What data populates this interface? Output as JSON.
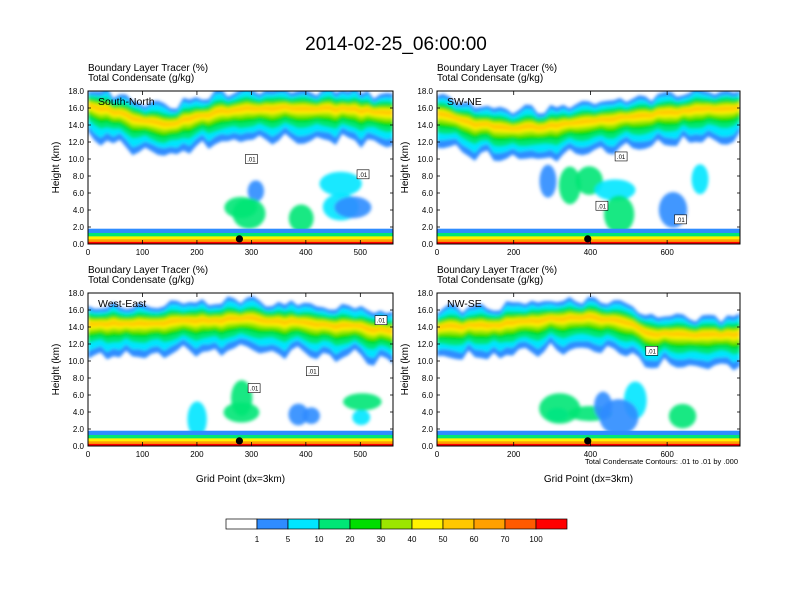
{
  "figure": {
    "title": "2014-02-25_06:00:00",
    "footnote": "Total Condensate Contours: .01 to .01 by .000"
  },
  "colorbar": {
    "colors": [
      "#ffffff",
      "#2f8cff",
      "#00e5ff",
      "#00e676",
      "#00dd00",
      "#9ce600",
      "#fff200",
      "#ffc800",
      "#ffa000",
      "#ff5a00",
      "#ff0000"
    ],
    "labels": [
      "1",
      "5",
      "10",
      "20",
      "30",
      "40",
      "50",
      "60",
      "70",
      "100"
    ]
  },
  "chart_data": [
    {
      "type": "heatmap",
      "panel_label": "South-North",
      "subtitle_1": "Boundary Layer Tracer   (%)",
      "subtitle_2": "Total Condensate   (g/kg)",
      "ylabel": "Height (km)",
      "xlabel": "",
      "xlim": [
        0,
        560
      ],
      "ylim": [
        0,
        18
      ],
      "xticks": [
        0,
        100,
        200,
        300,
        400,
        500
      ],
      "yticks": [
        "0.0",
        "2.0",
        "4.0",
        "6.0",
        "8.0",
        "10.0",
        "12.0",
        "14.0",
        "16.0",
        "18.0"
      ],
      "contour_labels": [
        {
          "text": ".01",
          "x": 300,
          "y": 10
        },
        {
          "text": ".01",
          "x": 505,
          "y": 8.2
        }
      ],
      "marker_x": 278,
      "core": [
        [
          0,
          16.5
        ],
        [
          40,
          15.8
        ],
        [
          90,
          14.8
        ],
        [
          140,
          14
        ],
        [
          200,
          15
        ],
        [
          260,
          15.8
        ],
        [
          320,
          16
        ],
        [
          380,
          16.1
        ],
        [
          440,
          16
        ],
        [
          500,
          15.8
        ],
        [
          560,
          15.5
        ]
      ]
    },
    {
      "type": "heatmap",
      "panel_label": "SW-NE",
      "subtitle_1": "Boundary Layer Tracer   (%)",
      "subtitle_2": "Total Condensate   (g/kg)",
      "ylabel": "Height (km)",
      "xlabel": "",
      "xlim": [
        0,
        790
      ],
      "ylim": [
        0,
        18
      ],
      "xticks": [
        0,
        200,
        400,
        600
      ],
      "yticks": [
        "0.0",
        "2.0",
        "4.0",
        "6.0",
        "8.0",
        "10.0",
        "12.0",
        "14.0",
        "16.0",
        "18.0"
      ],
      "contour_labels": [
        {
          "text": ".01",
          "x": 480,
          "y": 10.3
        },
        {
          "text": ".01",
          "x": 430,
          "y": 4.5
        },
        {
          "text": ".01",
          "x": 635,
          "y": 2.9
        }
      ],
      "marker_x": 393,
      "core": [
        [
          0,
          15.5
        ],
        [
          100,
          14.2
        ],
        [
          200,
          13.6
        ],
        [
          300,
          14
        ],
        [
          400,
          14.5
        ],
        [
          500,
          15
        ],
        [
          600,
          15.5
        ],
        [
          700,
          16
        ],
        [
          790,
          16.2
        ]
      ]
    },
    {
      "type": "heatmap",
      "panel_label": "West-East",
      "subtitle_1": "Boundary Layer Tracer   (%)",
      "subtitle_2": "Total Condensate   (g/kg)",
      "ylabel": "Height (km)",
      "xlabel": "Grid Point (dx=3km)",
      "xlim": [
        0,
        560
      ],
      "ylim": [
        0,
        18
      ],
      "xticks": [
        0,
        100,
        200,
        300,
        400,
        500
      ],
      "yticks": [
        "0.0",
        "2.0",
        "4.0",
        "6.0",
        "8.0",
        "10.0",
        "12.0",
        "14.0",
        "16.0",
        "18.0"
      ],
      "contour_labels": [
        {
          "text": ".01",
          "x": 538,
          "y": 14.8
        },
        {
          "text": ".01",
          "x": 412,
          "y": 8.8
        },
        {
          "text": ".01",
          "x": 305,
          "y": 6.8
        }
      ],
      "marker_x": 278,
      "core": [
        [
          0,
          14.5
        ],
        [
          100,
          14.5
        ],
        [
          200,
          14.8
        ],
        [
          300,
          15
        ],
        [
          400,
          14.5
        ],
        [
          500,
          14
        ],
        [
          560,
          13.5
        ]
      ]
    },
    {
      "type": "heatmap",
      "panel_label": "NW-SE",
      "subtitle_1": "Boundary Layer Tracer   (%)",
      "subtitle_2": "Total Condensate   (g/kg)",
      "ylabel": "Height (km)",
      "xlabel": "Grid Point (dx=3km)",
      "xlim": [
        0,
        790
      ],
      "ylim": [
        0,
        18
      ],
      "xticks": [
        0,
        200,
        400,
        600
      ],
      "yticks": [
        "0.0",
        "2.0",
        "4.0",
        "6.0",
        "8.0",
        "10.0",
        "12.0",
        "14.0",
        "16.0",
        "18.0"
      ],
      "contour_labels": [
        {
          "text": ".01",
          "x": 560,
          "y": 11.2
        }
      ],
      "marker_x": 393,
      "core": [
        [
          0,
          14
        ],
        [
          100,
          14.2
        ],
        [
          200,
          14.5
        ],
        [
          300,
          15
        ],
        [
          400,
          15.3
        ],
        [
          500,
          14.5
        ],
        [
          560,
          13.2
        ]
      ]
    }
  ]
}
